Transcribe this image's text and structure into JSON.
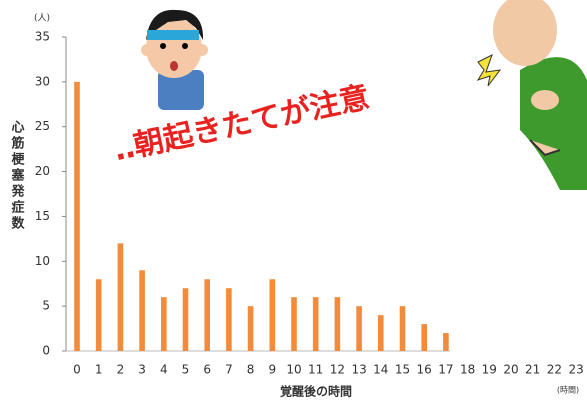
{
  "chart_data": {
    "type": "bar",
    "y_unit": "(人)",
    "y_label": "心筋梗塞発症数",
    "x_label": "覚醒後の時間",
    "x_unit": "(時間)",
    "annotation": "‥朝起きたてが注意",
    "categories": [
      "0",
      "1",
      "2",
      "3",
      "4",
      "5",
      "6",
      "7",
      "8",
      "9",
      "10",
      "11",
      "12",
      "13",
      "14",
      "15",
      "16",
      "17",
      "18",
      "19",
      "20",
      "21",
      "22",
      "23"
    ],
    "values": [
      30,
      8,
      12,
      9,
      6,
      7,
      8,
      7,
      5,
      8,
      6,
      6,
      6,
      5,
      4,
      5,
      3,
      2,
      0,
      0,
      0,
      0,
      0,
      0
    ],
    "color": "#f28c3c",
    "ylim": [
      0,
      35
    ],
    "yticks": [
      0,
      5,
      10,
      15,
      20,
      25,
      30,
      35
    ],
    "grid": false
  }
}
